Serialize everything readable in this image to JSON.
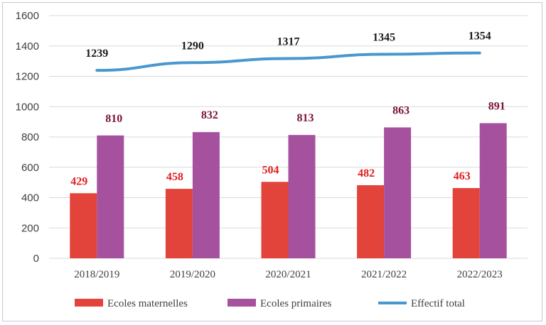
{
  "chart_data": {
    "type": "bar",
    "categories": [
      "2018/2019",
      "2019/2020",
      "2020/2021",
      "2021/2022",
      "2022/2023"
    ],
    "series": [
      {
        "name": "Ecoles maternelles",
        "kind": "bar",
        "color": "#e2433b",
        "label_color": "#e02020",
        "values": [
          429,
          458,
          504,
          482,
          463
        ]
      },
      {
        "name": "Ecoles primaires",
        "kind": "bar",
        "color": "#a5519e",
        "label_color": "#7a1437",
        "values": [
          810,
          832,
          813,
          863,
          891
        ]
      },
      {
        "name": "Effectif total",
        "kind": "line",
        "color": "#4a97cf",
        "label_color": "#1a1a1a",
        "values": [
          1239,
          1290,
          1317,
          1345,
          1354
        ]
      }
    ],
    "ylim": [
      0,
      1600
    ],
    "yticks": [
      0,
      200,
      400,
      600,
      800,
      1000,
      1200,
      1400,
      1600
    ],
    "grid": true,
    "legend": "bottom"
  }
}
